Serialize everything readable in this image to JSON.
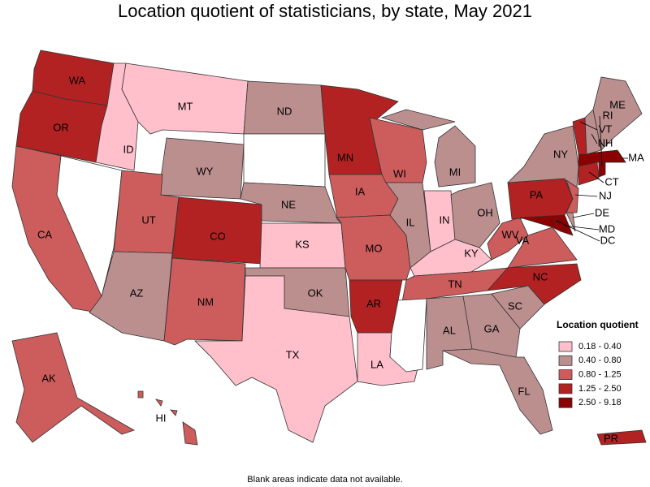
{
  "title": "Location quotient of statisticians, by state, May 2021",
  "map": {
    "states": [
      {
        "label": "WA",
        "color": "#b22222"
      },
      {
        "label": "OR",
        "color": "#b22222"
      },
      {
        "label": "CA",
        "color": "#cd5c5c"
      },
      {
        "label": null,
        "color": "#ffffff"
      },
      {
        "label": "ID",
        "color": "#ffc0cb"
      },
      {
        "label": "MT",
        "color": "#ffc0cb"
      },
      {
        "label": "WY",
        "color": "#bc8f8f"
      },
      {
        "label": "UT",
        "color": "#cd5c5c"
      },
      {
        "label": "AZ",
        "color": "#bc8f8f"
      },
      {
        "label": "CO",
        "color": "#b22222"
      },
      {
        "label": "NM",
        "color": "#cd5c5c"
      },
      {
        "label": "ND",
        "color": "#bc8f8f"
      },
      {
        "label": null,
        "color": "#ffffff"
      },
      {
        "label": "NE",
        "color": "#bc8f8f"
      },
      {
        "label": "KS",
        "color": "#ffc0cb"
      },
      {
        "label": "OK",
        "color": "#bc8f8f"
      },
      {
        "label": "TX",
        "color": "#ffc0cb"
      },
      {
        "label": "MN",
        "color": "#b22222"
      },
      {
        "label": "IA",
        "color": "#cd5c5c"
      },
      {
        "label": "MO",
        "color": "#cd5c5c"
      },
      {
        "label": "AR",
        "color": "#b22222"
      },
      {
        "label": "LA",
        "color": "#ffc0cb"
      },
      {
        "label": "WI",
        "color": "#cd5c5c"
      },
      {
        "label": "IL",
        "color": "#bc8f8f"
      },
      {
        "label": "MI",
        "color": "#bc8f8f"
      },
      {
        "label": "IN",
        "color": "#ffc0cb"
      },
      {
        "label": "OH",
        "color": "#bc8f8f"
      },
      {
        "label": "KY",
        "color": "#ffc0cb"
      },
      {
        "label": "TN",
        "color": "#cd5c5c"
      },
      {
        "label": null,
        "color": "#ffffff"
      },
      {
        "label": "AL",
        "color": "#bc8f8f"
      },
      {
        "label": "GA",
        "color": "#bc8f8f"
      },
      {
        "label": "FL",
        "color": "#bc8f8f"
      },
      {
        "label": "SC",
        "color": "#bc8f8f"
      },
      {
        "label": "NC",
        "color": "#b22222"
      },
      {
        "label": "VA",
        "color": "#cd5c5c"
      },
      {
        "label": "WV",
        "color": "#cd5c5c"
      },
      {
        "label": "PA",
        "color": "#b22222"
      },
      {
        "label": "NY",
        "color": "#bc8f8f"
      },
      {
        "label": "MD",
        "color": "#8b0000"
      },
      {
        "label": "DE",
        "color": "#bc8f8f"
      },
      {
        "label": "NJ",
        "color": "#cd5c5c"
      },
      {
        "label": "CT",
        "color": "#b22222"
      },
      {
        "label": "RI",
        "color": "#8b0000"
      },
      {
        "label": "MA",
        "color": "#8b0000"
      },
      {
        "label": "VT",
        "color": "#b22222"
      },
      {
        "label": "NH",
        "color": "#bc8f8f"
      },
      {
        "label": "ME",
        "color": "#bc8f8f"
      },
      {
        "label": "DC",
        "color": "#8b0000"
      },
      {
        "label": "AK",
        "color": "#cd5c5c"
      },
      {
        "label": "HI",
        "color": "#cd5c5c"
      },
      {
        "label": "PR",
        "color": "#b22222"
      }
    ]
  },
  "legend": {
    "title": "Location quotient",
    "items": [
      {
        "label": "0.18 - 0.40",
        "color": "#ffc0cb"
      },
      {
        "label": "0.40 - 0.80",
        "color": "#bc8f8f"
      },
      {
        "label": "0.80 - 1.25",
        "color": "#cd5c5c"
      },
      {
        "label": "1.25 - 2.50",
        "color": "#b22222"
      },
      {
        "label": "2.50 - 9.18",
        "color": "#8b0000"
      }
    ]
  },
  "note": "Blank areas indicate data not available."
}
